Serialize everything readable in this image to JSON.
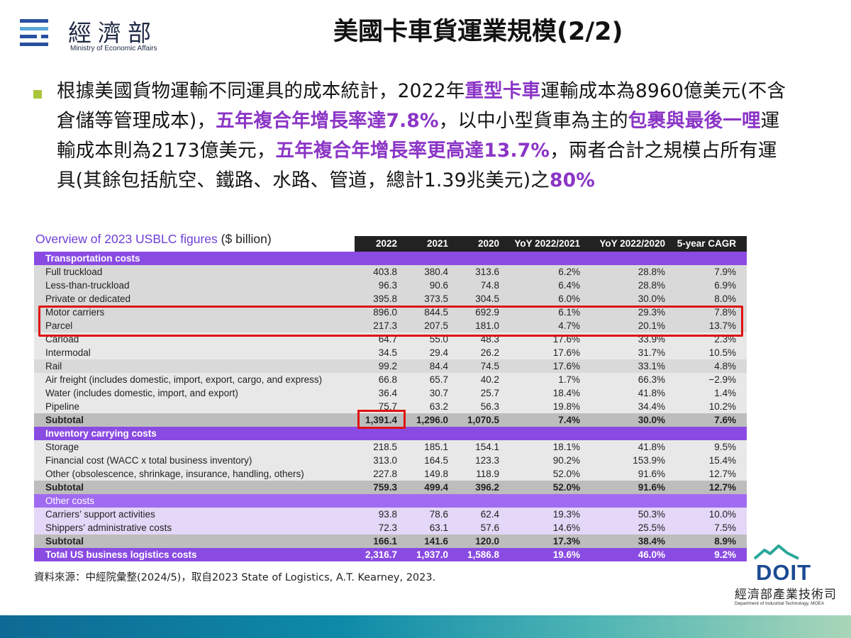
{
  "header": {
    "org_name_cn": "經濟部",
    "org_name_en": "Ministry of Economic Affairs",
    "title": "美國卡車貨運業規模(2/2)"
  },
  "paragraph": [
    {
      "t": "根據美國貨物運輸不同運具的成本統計，2022年",
      "hl": false
    },
    {
      "t": "重型卡車",
      "hl": true
    },
    {
      "t": "運輸成本為8960億美元(不含倉儲等管理成本)，",
      "hl": false
    },
    {
      "t": "五年複合年增長率達7.8%",
      "hl": true
    },
    {
      "t": "，以中小型貨車為主的",
      "hl": false
    },
    {
      "t": "包裹與最後一哩",
      "hl": true
    },
    {
      "t": "運輸成本則為2173億美元，",
      "hl": false
    },
    {
      "t": "五年複合年增長率更高達13.7%",
      "hl": true
    },
    {
      "t": "，兩者合計之規模占所有運具(其餘包括航空、鐵路、水路、管道，總計1.39兆美元)之",
      "hl": false
    },
    {
      "t": "80%",
      "hl": true
    }
  ],
  "table": {
    "title": "Overview of 2023 USBLC figures",
    "unit": " ($ billion)",
    "columns": [
      "2022",
      "2021",
      "2020",
      "YoY 2022/2021",
      "YoY 2022/2020",
      "5-year CAGR"
    ],
    "rows": [
      {
        "style": "sec",
        "label": "Transportation costs",
        "v": []
      },
      {
        "style": "t-a",
        "label": "Full truckload",
        "v": [
          "403.8",
          "380.4",
          "313.6",
          "6.2%",
          "28.8%",
          "7.9%"
        ]
      },
      {
        "style": "t-a",
        "label": "Less-than-truckload",
        "v": [
          "96.3",
          "90.6",
          "74.8",
          "6.4%",
          "28.8%",
          "6.9%"
        ]
      },
      {
        "style": "t-a",
        "label": "Private or dedicated",
        "v": [
          "395.8",
          "373.5",
          "304.5",
          "6.0%",
          "30.0%",
          "8.0%"
        ]
      },
      {
        "style": "t-a",
        "label": "Motor carriers",
        "v": [
          "896.0",
          "844.5",
          "692.9",
          "6.1%",
          "29.3%",
          "7.8%"
        ]
      },
      {
        "style": "t-a",
        "label": "Parcel",
        "v": [
          "217.3",
          "207.5",
          "181.0",
          "4.7%",
          "20.1%",
          "13.7%"
        ]
      },
      {
        "style": "t-b",
        "label": "Carload",
        "v": [
          "64.7",
          "55.0",
          "48.3",
          "17.6%",
          "33.9%",
          "2.3%"
        ]
      },
      {
        "style": "t-b",
        "label": "Intermodal",
        "v": [
          "34.5",
          "29.4",
          "26.2",
          "17.6%",
          "31.7%",
          "10.5%"
        ]
      },
      {
        "style": "t-a",
        "label": "Rail",
        "v": [
          "99.2",
          "84.4",
          "74.5",
          "17.6%",
          "33.1%",
          "4.8%"
        ]
      },
      {
        "style": "t-b",
        "label": "Air freight (includes domestic, import, export, cargo, and express)",
        "v": [
          "66.8",
          "65.7",
          "40.2",
          "1.7%",
          "66.3%",
          "−2.9%"
        ]
      },
      {
        "style": "t-b",
        "label": "Water (includes domestic, import, and export)",
        "v": [
          "36.4",
          "30.7",
          "25.7",
          "18.4%",
          "41.8%",
          "1.4%"
        ]
      },
      {
        "style": "t-b",
        "label": "Pipeline",
        "v": [
          "75.7",
          "63.2",
          "56.3",
          "19.8%",
          "34.4%",
          "10.2%"
        ]
      },
      {
        "style": "sub",
        "label": "Subtotal",
        "v": [
          "1,391.4",
          "1,296.0",
          "1,070.5",
          "7.4%",
          "30.0%",
          "7.6%"
        ]
      },
      {
        "style": "sec",
        "label": "Inventory carrying costs",
        "v": []
      },
      {
        "style": "t-b",
        "label": "Storage",
        "v": [
          "218.5",
          "185.1",
          "154.1",
          "18.1%",
          "41.8%",
          "9.5%"
        ]
      },
      {
        "style": "t-b",
        "label": "Financial cost (WACC x total business inventory)",
        "v": [
          "313.0",
          "164.5",
          "123.3",
          "90.2%",
          "153.9%",
          "15.4%"
        ]
      },
      {
        "style": "t-b",
        "label": "Other (obsolescence, shrinkage, insurance, handling, others)",
        "v": [
          "227.8",
          "149.8",
          "118.9",
          "52.0%",
          "91.6%",
          "12.7%"
        ]
      },
      {
        "style": "sub",
        "label": "Subtotal",
        "v": [
          "759.3",
          "499.4",
          "396.2",
          "52.0%",
          "91.6%",
          "12.7%"
        ]
      },
      {
        "style": "sec-light",
        "label": "Other costs",
        "v": []
      },
      {
        "style": "o-a",
        "label": "Carriers’ support activities",
        "v": [
          "93.8",
          "78.6",
          "62.4",
          "19.3%",
          "50.3%",
          "10.0%"
        ]
      },
      {
        "style": "o-a",
        "label": "Shippers’ administrative costs",
        "v": [
          "72.3",
          "63.1",
          "57.6",
          "14.6%",
          "25.5%",
          "7.5%"
        ]
      },
      {
        "style": "sub",
        "label": "Subtotal",
        "v": [
          "166.1",
          "141.6",
          "120.0",
          "17.3%",
          "38.4%",
          "8.9%"
        ]
      },
      {
        "style": "total",
        "label": "Total US business logistics costs",
        "v": [
          "2,316.7",
          "1,937.0",
          "1,586.8",
          "19.6%",
          "46.0%",
          "9.2%"
        ]
      }
    ]
  },
  "source": "資料來源：中經院彙整(2024/5)，取自2023 State of Logistics, A.T. Kearney, 2023.",
  "doit": {
    "word": "DOIT",
    "cn": "經濟部產業技術司",
    "en": "Department of Industrial Technology, MOEA"
  },
  "colors": {
    "highlight": "#8b35c6",
    "section": "#8a4be3",
    "redbox": "#e01010",
    "bullet": "#a9c63c"
  }
}
